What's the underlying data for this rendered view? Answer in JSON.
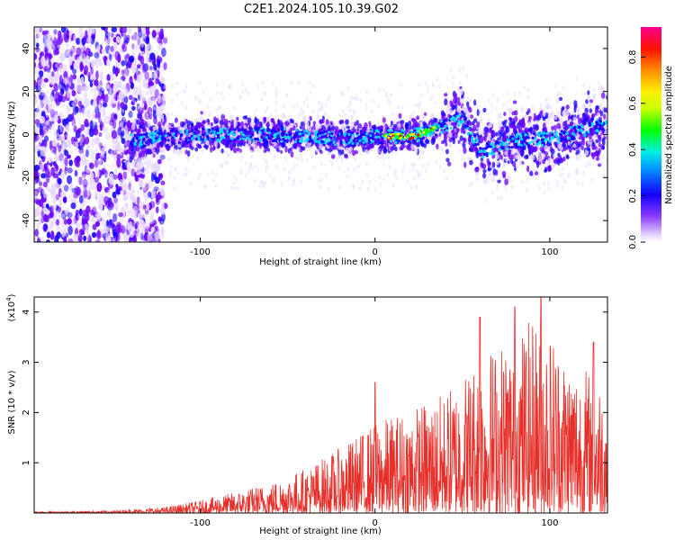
{
  "title": "C2E1.2024.105.10.39.G02",
  "chart_data": [
    {
      "type": "heatmap",
      "xlabel": "Height of straight line (km)",
      "ylabel": "Frequency (Hz)",
      "xlim": [
        -195,
        133
      ],
      "ylim": [
        -50,
        50
      ],
      "xticks": [
        -100,
        0,
        100
      ],
      "yticks": [
        -40,
        -20,
        0,
        20,
        40
      ],
      "colorbar": {
        "label": "Normalized spectral amplitude",
        "range": [
          0,
          0.93
        ],
        "ticks": [
          0.0,
          0.2,
          0.4,
          0.6,
          0.8
        ]
      },
      "grid": false,
      "ridge": [
        {
          "x": -195,
          "y": 27
        },
        {
          "x": -140,
          "y": -3
        },
        {
          "x": -100,
          "y": 0
        },
        {
          "x": -60,
          "y": 0
        },
        {
          "x": -20,
          "y": -2
        },
        {
          "x": 0,
          "y": -1
        },
        {
          "x": 20,
          "y": -1
        },
        {
          "x": 40,
          "y": 4
        },
        {
          "x": 50,
          "y": 8
        },
        {
          "x": 60,
          "y": -8
        },
        {
          "x": 80,
          "y": -3
        },
        {
          "x": 100,
          "y": -2
        },
        {
          "x": 133,
          "y": 5
        }
      ],
      "colors": [
        "#e7d9ff",
        "#6a00ff",
        "#1400ff",
        "#00e0ff",
        "#00ff00",
        "#ffff00",
        "#ff8000",
        "#ff0000",
        "#ff00a0"
      ]
    },
    {
      "type": "line",
      "xlabel": "Height of straight line (km)",
      "ylabel": "SNR (10 * v/v)",
      "yscale_label": "(x10",
      "yscale_exp": "4",
      "yscale_close": ")",
      "xlim": [
        -195,
        133
      ],
      "ylim": [
        0,
        4.3
      ],
      "xticks": [
        -100,
        0,
        100
      ],
      "yticks": [
        1,
        2,
        3,
        4
      ],
      "grid": false,
      "color": "#e8302b",
      "envelope": [
        {
          "x": -195,
          "y": 0.03
        },
        {
          "x": -150,
          "y": 0.05
        },
        {
          "x": -120,
          "y": 0.12
        },
        {
          "x": -100,
          "y": 0.25
        },
        {
          "x": -80,
          "y": 0.42
        },
        {
          "x": -60,
          "y": 0.6
        },
        {
          "x": -40,
          "y": 0.9
        },
        {
          "x": -20,
          "y": 1.3
        },
        {
          "x": 0,
          "y": 1.8
        },
        {
          "x": 20,
          "y": 2.1
        },
        {
          "x": 40,
          "y": 2.4
        },
        {
          "x": 60,
          "y": 3.2
        },
        {
          "x": 80,
          "y": 3.6
        },
        {
          "x": 95,
          "y": 4.0
        },
        {
          "x": 110,
          "y": 3.2
        },
        {
          "x": 133,
          "y": 2.6
        }
      ],
      "peaks": [
        {
          "x": 0,
          "y": 2.6
        },
        {
          "x": 60,
          "y": 3.9
        },
        {
          "x": 80,
          "y": 4.1
        },
        {
          "x": 95,
          "y": 4.3
        },
        {
          "x": 125,
          "y": 3.4
        }
      ]
    }
  ]
}
